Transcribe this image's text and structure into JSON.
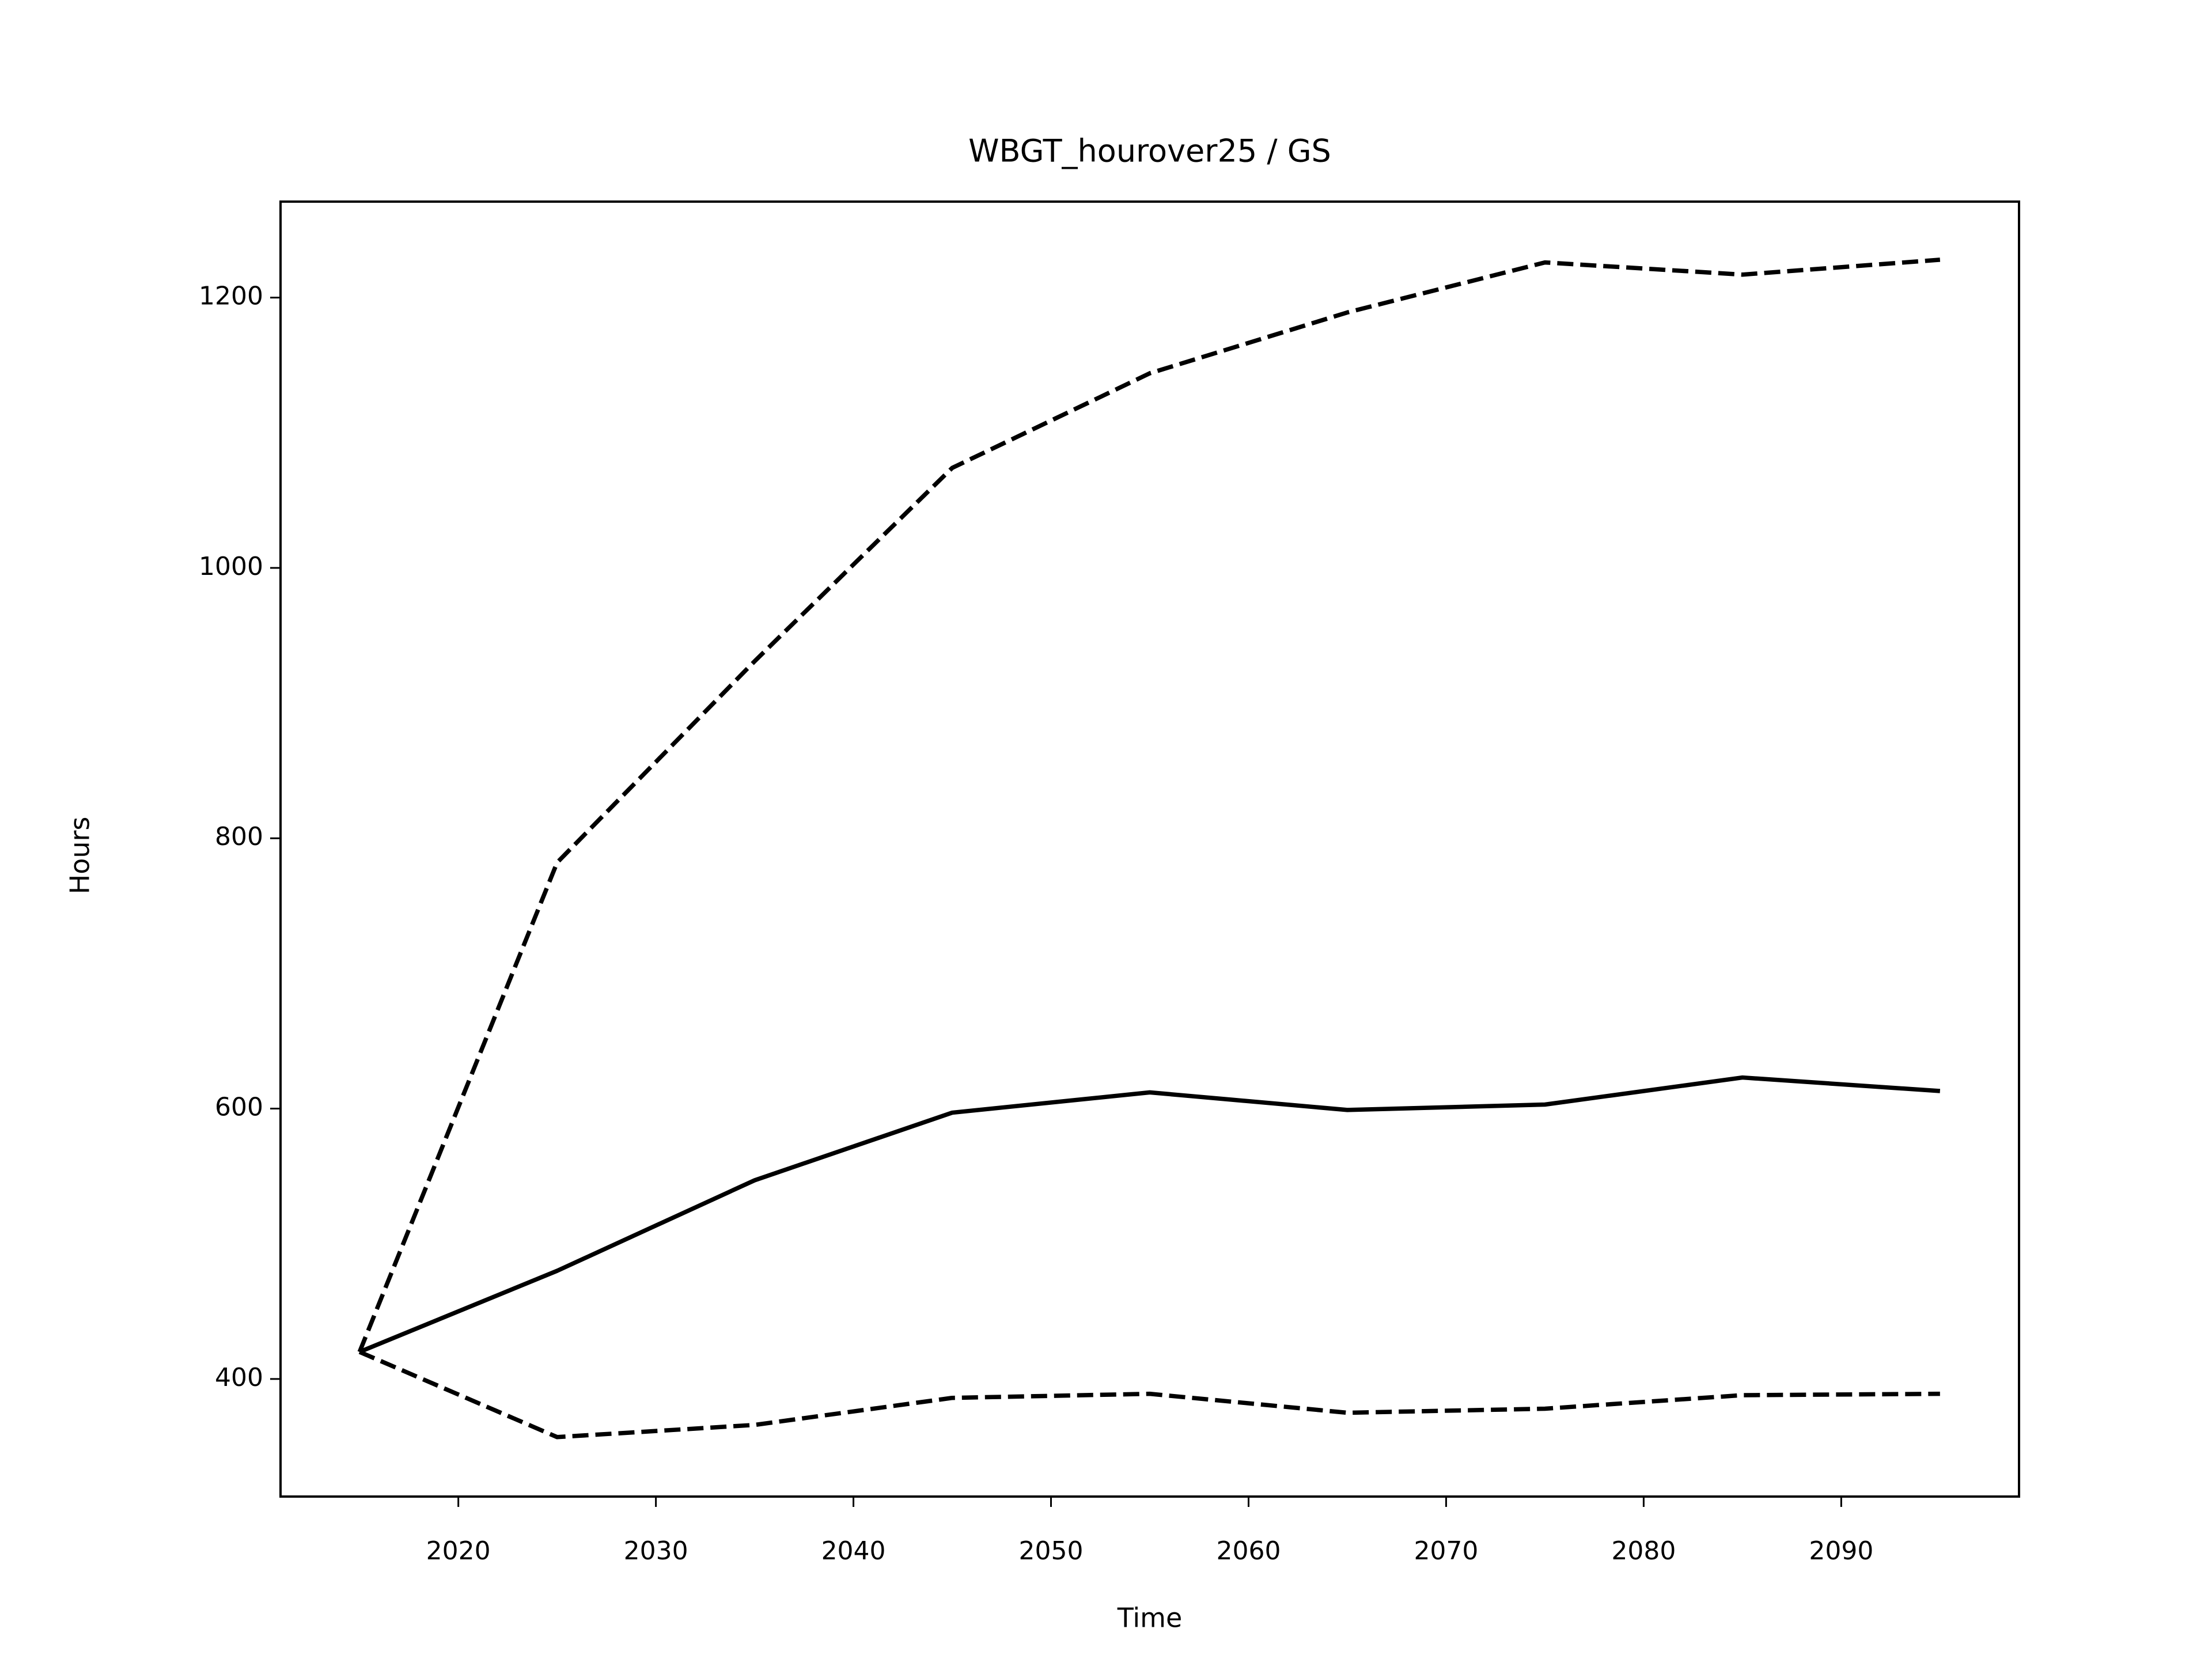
{
  "chart_data": {
    "type": "line",
    "title": "WBGT_hourover25 / GS",
    "xlabel": "Time",
    "ylabel": "Hours",
    "x": [
      2015,
      2025,
      2035,
      2045,
      2055,
      2065,
      2075,
      2085,
      2095
    ],
    "series": [
      {
        "color": "#000000",
        "style": "solid",
        "values": [
          420,
          480,
          547,
          597,
          612,
          599,
          603,
          623,
          613
        ]
      },
      {
        "color": "#000000",
        "style": "dashed",
        "values": [
          420,
          782,
          931,
          1074,
          1144,
          1189,
          1226,
          1217,
          1228
        ]
      },
      {
        "color": "#000000",
        "style": "dashed",
        "values": [
          420,
          357,
          366,
          386,
          389,
          375,
          378,
          388,
          389
        ]
      }
    ],
    "xlim": [
      2011,
      2099
    ],
    "xticks": [
      2020,
      2030,
      2040,
      2050,
      2060,
      2070,
      2080,
      2090
    ],
    "ylim": [
      313,
      1271
    ],
    "yticks": [
      400,
      600,
      800,
      1000,
      1200
    ],
    "grid": false
  }
}
